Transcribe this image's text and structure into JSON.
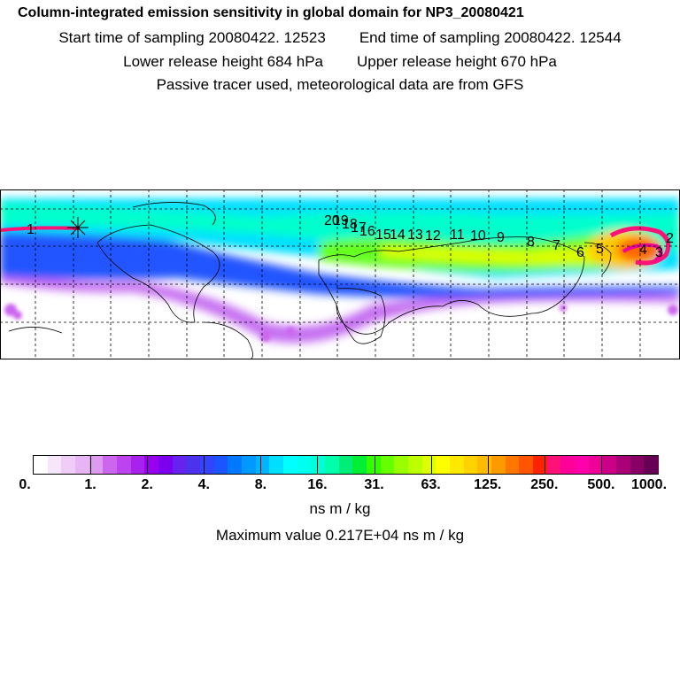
{
  "header": {
    "title": "Column-integrated emission sensitivity in global domain for NP3_20080421",
    "start_label": "Start time of sampling 20080422. 12523",
    "end_label": "End time of sampling 20080422. 12544",
    "lower_label": "Lower release height  684 hPa",
    "upper_label": "Upper release height  670 hPa",
    "tracer_line": "Passive tracer used, meteorological data are from GFS"
  },
  "map": {
    "trajectory_labels": [
      "1",
      "2",
      "3",
      "4",
      "5",
      "6",
      "7",
      "8",
      "9",
      "10",
      "11",
      "12",
      "13",
      "14",
      "15",
      "16",
      "17",
      "18",
      "19",
      "20"
    ],
    "colors": {
      "frame": "#000000",
      "grid": "#000000",
      "coast": "#000000"
    }
  },
  "colorbar": {
    "tick_labels": [
      "0.",
      "1.",
      "2.",
      "4.",
      "8.",
      "16.",
      "31.",
      "63.",
      "125.",
      "250.",
      "500.",
      "1000."
    ],
    "colors": [
      "#ffffff",
      "#f6e6fb",
      "#efcdf7",
      "#e7b4f4",
      "#dd9af0",
      "#cc66ee",
      "#bb44ee",
      "#a822ee",
      "#9900ee",
      "#7a00ee",
      "#6622ee",
      "#4b33ee",
      "#3344ff",
      "#1a55ff",
      "#0078ff",
      "#0099ff",
      "#00b4ff",
      "#00dfff",
      "#00ffff",
      "#00ffee",
      "#00ffd8",
      "#00ffaa",
      "#00ee77",
      "#00ee33",
      "#33ff00",
      "#66ff00",
      "#99ff00",
      "#bbff00",
      "#ddff00",
      "#ffff00",
      "#ffe800",
      "#ffd200",
      "#ffbb00",
      "#ff9900",
      "#ff7700",
      "#ff5500",
      "#ff2200",
      "#ff1177",
      "#ff0099",
      "#ff00aa",
      "#ee0099",
      "#cc0088",
      "#aa0077",
      "#880066",
      "#660055"
    ],
    "units": "ns m / kg",
    "max_value_label": "Maximum value  0.217E+04 ns m / kg"
  }
}
